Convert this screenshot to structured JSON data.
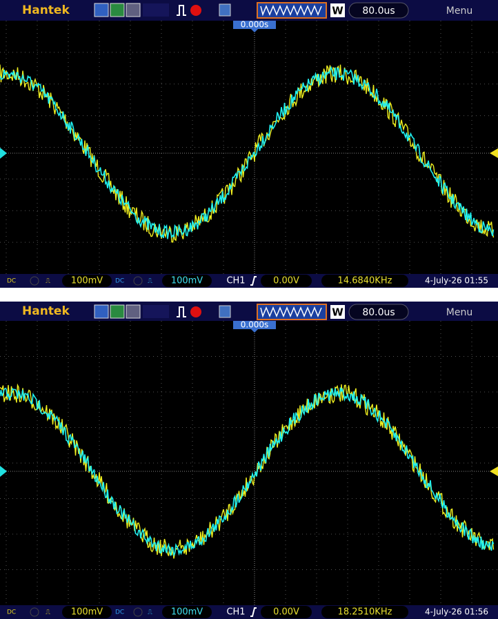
{
  "screens": [
    {
      "brand": "Hantek",
      "w_mode": "W",
      "timebase": "80.0us",
      "menu": "Menu",
      "trigger_position": "0.000s",
      "ch1_coupling": "DC",
      "ch1_scale": "100mV",
      "ch2_coupling": "DC",
      "ch2_scale": "100mV",
      "trigger_source": "CH1",
      "trigger_level": "0.00V",
      "frequency": "14.6840KHz",
      "datetime": "4-July-26 01:55"
    },
    {
      "brand": "Hantek",
      "w_mode": "W",
      "timebase": "80.0us",
      "menu": "Menu",
      "trigger_position": "0.000s",
      "ch1_coupling": "DC",
      "ch1_scale": "100mV",
      "ch2_coupling": "DC",
      "ch2_scale": "100mV",
      "trigger_source": "CH1",
      "trigger_level": "0.00V",
      "frequency": "18.2510KHz",
      "datetime": "4-July-26 01:56"
    }
  ]
}
